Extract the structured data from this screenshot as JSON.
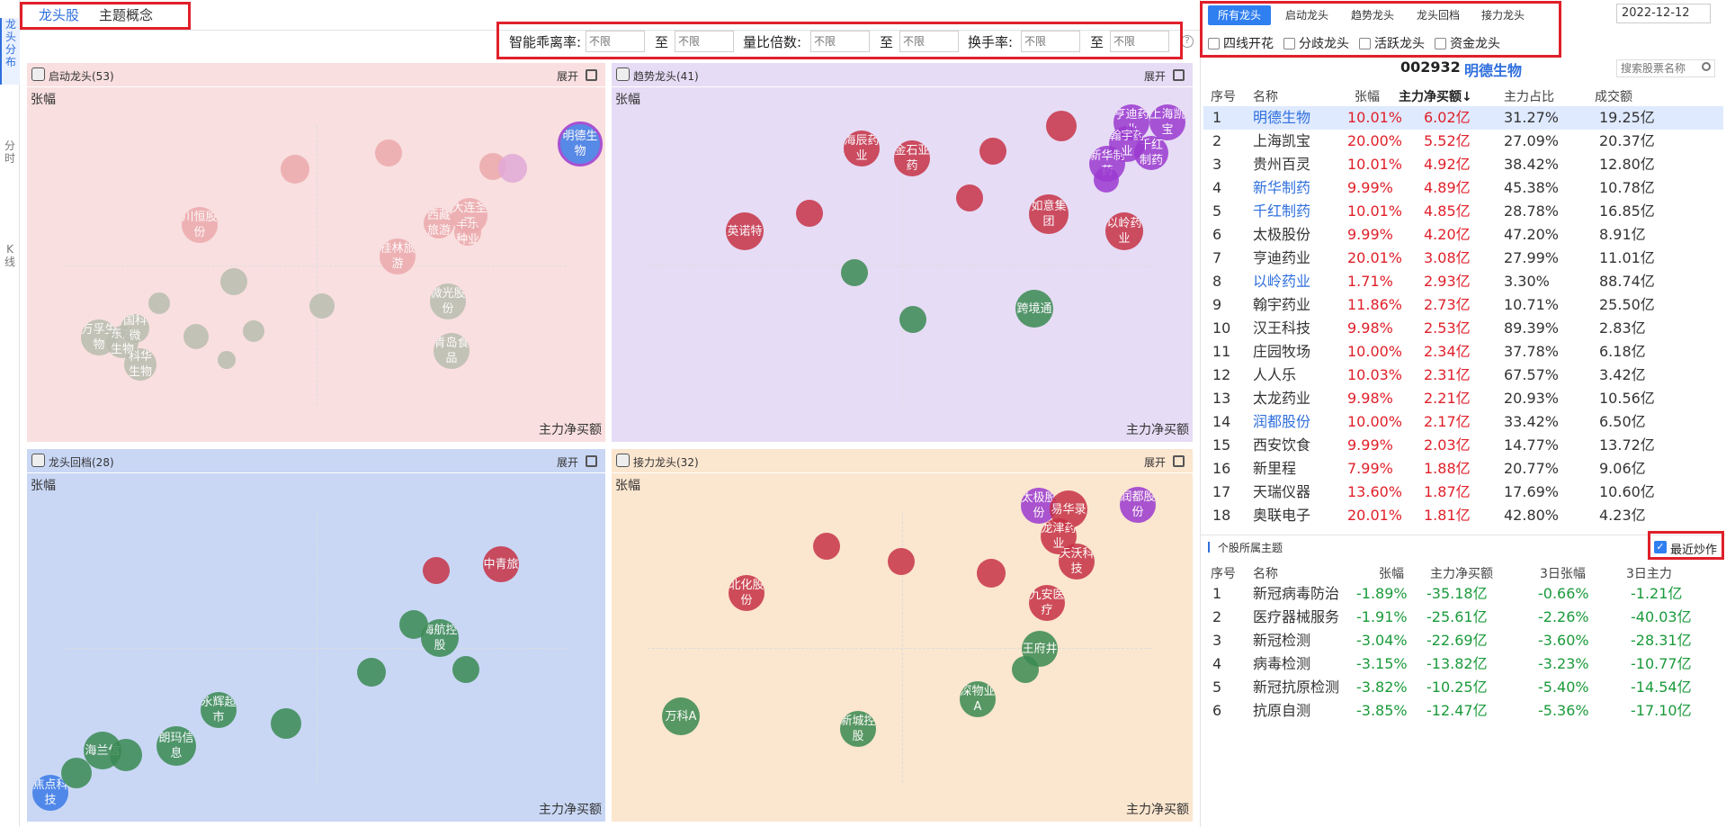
{
  "vnav": {
    "items": [
      {
        "label": "龙头分布"
      },
      {
        "label": "分时"
      },
      {
        "label": "K线"
      }
    ]
  },
  "top_tabs": [
    {
      "label": "龙头股"
    },
    {
      "label": "主题概念"
    }
  ],
  "filters": {
    "labels": [
      "智能乖离率:",
      "量比倍数:",
      "换手率:"
    ],
    "to": "至",
    "placeholder": "不限",
    "help": "?"
  },
  "panels": [
    {
      "title": "启动龙头(53)",
      "expand": "展开",
      "ylabel": "张幅",
      "xlabel": "主力净买额"
    },
    {
      "title": "趋势龙头(41)",
      "expand": "展开",
      "ylabel": "张幅",
      "xlabel": "主力净买额"
    },
    {
      "title": "龙头回档(28)",
      "expand": "展开",
      "ylabel": "张幅",
      "xlabel": "主力净买额"
    },
    {
      "title": "接力龙头(32)",
      "expand": "展开",
      "ylabel": "张幅",
      "xlabel": "主力净买额"
    }
  ],
  "right_tabs": [
    {
      "label": "所有龙头"
    },
    {
      "label": "启动龙头"
    },
    {
      "label": "趋势龙头"
    },
    {
      "label": "龙头回档"
    },
    {
      "label": "接力龙头"
    }
  ],
  "right_checks": [
    {
      "label": "四线开花"
    },
    {
      "label": "分歧龙头"
    },
    {
      "label": "活跃龙头"
    },
    {
      "label": "资金龙头"
    }
  ],
  "date": "2022-12-12",
  "search_placeholder": "搜索股票名称",
  "selected_stock": {
    "code": "002932",
    "name": "明德生物"
  },
  "main_table": {
    "headers": [
      "序号",
      "名称",
      "张幅",
      "主力净买额↓",
      "主力占比",
      "成交额"
    ],
    "rows": [
      {
        "no": "1",
        "name": "明德生物",
        "chg": "10.01%",
        "net": "6.02亿",
        "ratio": "31.27%",
        "vol": "19.25亿",
        "blue": true
      },
      {
        "no": "2",
        "name": "上海凯宝",
        "chg": "20.00%",
        "net": "5.52亿",
        "ratio": "27.09%",
        "vol": "20.37亿",
        "blue": false
      },
      {
        "no": "3",
        "name": "贵州百灵",
        "chg": "10.01%",
        "net": "4.92亿",
        "ratio": "38.42%",
        "vol": "12.80亿",
        "blue": false
      },
      {
        "no": "4",
        "name": "新华制药",
        "chg": "9.99%",
        "net": "4.89亿",
        "ratio": "45.38%",
        "vol": "10.78亿",
        "blue": true
      },
      {
        "no": "5",
        "name": "千红制药",
        "chg": "10.01%",
        "net": "4.85亿",
        "ratio": "28.78%",
        "vol": "16.85亿",
        "blue": true
      },
      {
        "no": "6",
        "name": "太极股份",
        "chg": "9.99%",
        "net": "4.20亿",
        "ratio": "47.20%",
        "vol": "8.91亿",
        "blue": false
      },
      {
        "no": "7",
        "name": "亨迪药业",
        "chg": "20.01%",
        "net": "3.08亿",
        "ratio": "27.99%",
        "vol": "11.01亿",
        "blue": false
      },
      {
        "no": "8",
        "name": "以岭药业",
        "chg": "1.71%",
        "net": "2.93亿",
        "ratio": "3.30%",
        "vol": "88.74亿",
        "blue": true
      },
      {
        "no": "9",
        "name": "翰宇药业",
        "chg": "11.86%",
        "net": "2.73亿",
        "ratio": "10.71%",
        "vol": "25.50亿",
        "blue": false
      },
      {
        "no": "10",
        "name": "汉王科技",
        "chg": "9.98%",
        "net": "2.53亿",
        "ratio": "89.39%",
        "vol": "2.83亿",
        "blue": false
      },
      {
        "no": "11",
        "name": "庄园牧场",
        "chg": "10.00%",
        "net": "2.34亿",
        "ratio": "37.78%",
        "vol": "6.18亿",
        "blue": false
      },
      {
        "no": "12",
        "name": "人人乐",
        "chg": "10.03%",
        "net": "2.31亿",
        "ratio": "67.57%",
        "vol": "3.42亿",
        "blue": false
      },
      {
        "no": "13",
        "name": "太龙药业",
        "chg": "9.98%",
        "net": "2.21亿",
        "ratio": "20.93%",
        "vol": "10.56亿",
        "blue": false
      },
      {
        "no": "14",
        "name": "润都股份",
        "chg": "10.00%",
        "net": "2.17亿",
        "ratio": "33.42%",
        "vol": "6.50亿",
        "blue": true
      },
      {
        "no": "15",
        "name": "西安饮食",
        "chg": "9.99%",
        "net": "2.03亿",
        "ratio": "14.77%",
        "vol": "13.72亿",
        "blue": false
      },
      {
        "no": "16",
        "name": "新里程",
        "chg": "7.99%",
        "net": "1.88亿",
        "ratio": "20.77%",
        "vol": "9.06亿",
        "blue": false
      },
      {
        "no": "17",
        "name": "天瑞仪器",
        "chg": "13.60%",
        "net": "1.87亿",
        "ratio": "17.69%",
        "vol": "10.60亿",
        "blue": false
      },
      {
        "no": "18",
        "name": "奥联电子",
        "chg": "20.01%",
        "net": "1.81亿",
        "ratio": "42.80%",
        "vol": "4.23亿",
        "blue": false
      }
    ]
  },
  "theme_section": {
    "title": "个股所属主题",
    "recent_label": "最近炒作"
  },
  "theme_table": {
    "headers": [
      "序号",
      "名称",
      "张幅",
      "主力净买额",
      "3日张幅",
      "3日主力"
    ],
    "rows": [
      {
        "no": "1",
        "name": "新冠病毒防治",
        "chg": "-1.89%",
        "net": "-35.18亿",
        "chg3": "-0.66%",
        "net3": "-1.21亿"
      },
      {
        "no": "2",
        "name": "医疗器械服务",
        "chg": "-1.91%",
        "net": "-25.61亿",
        "chg3": "-2.26%",
        "net3": "-40.03亿"
      },
      {
        "no": "3",
        "name": "新冠检测",
        "chg": "-3.04%",
        "net": "-22.69亿",
        "chg3": "-3.60%",
        "net3": "-28.31亿"
      },
      {
        "no": "4",
        "name": "病毒检测",
        "chg": "-3.15%",
        "net": "-13.82亿",
        "chg3": "-3.23%",
        "net3": "-10.77亿"
      },
      {
        "no": "5",
        "name": "新冠抗原检测",
        "chg": "-3.82%",
        "net": "-10.25亿",
        "chg3": "-5.40%",
        "net3": "-14.54亿"
      },
      {
        "no": "6",
        "name": "抗原自测",
        "chg": "-3.85%",
        "net": "-12.47亿",
        "chg3": "-5.36%",
        "net3": "-17.10亿"
      }
    ]
  },
  "bubbles": [
    [
      {
        "t": "明德生物",
        "c": "#3b7be8"
      },
      {
        "t": "川恒股份",
        "c": "#eba9ad"
      },
      {
        "t": "桂林旅游",
        "c": "#eba9ad"
      },
      {
        "t": "大连圣亚",
        "c": "#eba9ad"
      },
      {
        "t": "西藏旅游",
        "c": "#eba9ad"
      },
      {
        "t": "丰乐种业",
        "c": "#eba9ad"
      },
      {
        "t": "青岛食品",
        "c": "#b9bdb0"
      },
      {
        "t": "微光股份",
        "c": "#b9bdb0"
      },
      {
        "t": "万孚生物",
        "c": "#b9bdb0"
      },
      {
        "t": "东方生物",
        "c": "#b9bdb0"
      },
      {
        "t": "国科微",
        "c": "#b9bdb0"
      },
      {
        "t": "科华生物",
        "c": "#b9bdb0"
      },
      {
        "t": "",
        "c": "#eba9ad"
      },
      {
        "t": "",
        "c": "#eba9ad"
      },
      {
        "t": "",
        "c": "#eba9ad"
      },
      {
        "t": "",
        "c": "#e0a9d8"
      },
      {
        "t": "",
        "c": "#b9bdb0"
      },
      {
        "t": "",
        "c": "#b9bdb0"
      },
      {
        "t": "",
        "c": "#b9bdb0"
      },
      {
        "t": "",
        "c": "#b9bdb0"
      },
      {
        "t": "",
        "c": "#b9bdb0"
      },
      {
        "t": "",
        "c": "#b9bdb0"
      }
    ],
    [
      {
        "t": "亨迪药业",
        "c": "#9b3ad0"
      },
      {
        "t": "上海凯宝",
        "c": "#9b3ad0"
      },
      {
        "t": "千红制药",
        "c": "#9b3ad0"
      },
      {
        "t": "翰宇药业",
        "c": "#9b3ad0"
      },
      {
        "t": "新华制药",
        "c": "#9b3ad0"
      },
      {
        "t": "海辰药业",
        "c": "#c73246"
      },
      {
        "t": "金石亚药",
        "c": "#c73246"
      },
      {
        "t": "英诺特",
        "c": "#c73246"
      },
      {
        "t": "以岭药业",
        "c": "#c73246"
      },
      {
        "t": "如意集团",
        "c": "#c73246"
      },
      {
        "t": "跨境通",
        "c": "#3a8a52"
      },
      {
        "t": "",
        "c": "#c73246"
      },
      {
        "t": "",
        "c": "#c73246"
      },
      {
        "t": "",
        "c": "#c73246"
      },
      {
        "t": "",
        "c": "#c73246"
      },
      {
        "t": "",
        "c": "#3a8a52"
      },
      {
        "t": "",
        "c": "#3a8a52"
      },
      {
        "t": "",
        "c": "#9b3ad0"
      }
    ],
    [
      {
        "t": "中青旅",
        "c": "#c73246"
      },
      {
        "t": "海航控股",
        "c": "#3a8a52"
      },
      {
        "t": "永辉超市",
        "c": "#3a8a52"
      },
      {
        "t": "朗玛信息",
        "c": "#3a8a52"
      },
      {
        "t": "海兰信",
        "c": "#3a8a52"
      },
      {
        "t": "焦点科技",
        "c": "#3b7be8"
      },
      {
        "t": "",
        "c": "#3a8a52"
      },
      {
        "t": "",
        "c": "#3a8a52"
      },
      {
        "t": "",
        "c": "#3a8a52"
      },
      {
        "t": "",
        "c": "#3a8a52"
      },
      {
        "t": "",
        "c": "#3a8a52"
      },
      {
        "t": "",
        "c": "#3a8a52"
      },
      {
        "t": "",
        "c": "#c73246"
      }
    ],
    [
      {
        "t": "太极股份",
        "c": "#9b3ad0"
      },
      {
        "t": "润都股份",
        "c": "#9b3ad0"
      },
      {
        "t": "易华录",
        "c": "#c73246"
      },
      {
        "t": "龙津药业",
        "c": "#c73246"
      },
      {
        "t": "天沃科技",
        "c": "#c73246"
      },
      {
        "t": "九安医疗",
        "c": "#c73246"
      },
      {
        "t": "北化股份",
        "c": "#c73246"
      },
      {
        "t": "王府井",
        "c": "#3a8a52"
      },
      {
        "t": "深物业A",
        "c": "#3a8a52"
      },
      {
        "t": "新城控股",
        "c": "#3a8a52"
      },
      {
        "t": "万科A",
        "c": "#3a8a52"
      },
      {
        "t": "",
        "c": "#c73246"
      },
      {
        "t": "",
        "c": "#c73246"
      },
      {
        "t": "",
        "c": "#c73246"
      },
      {
        "t": "",
        "c": "#3a8a52"
      }
    ]
  ]
}
